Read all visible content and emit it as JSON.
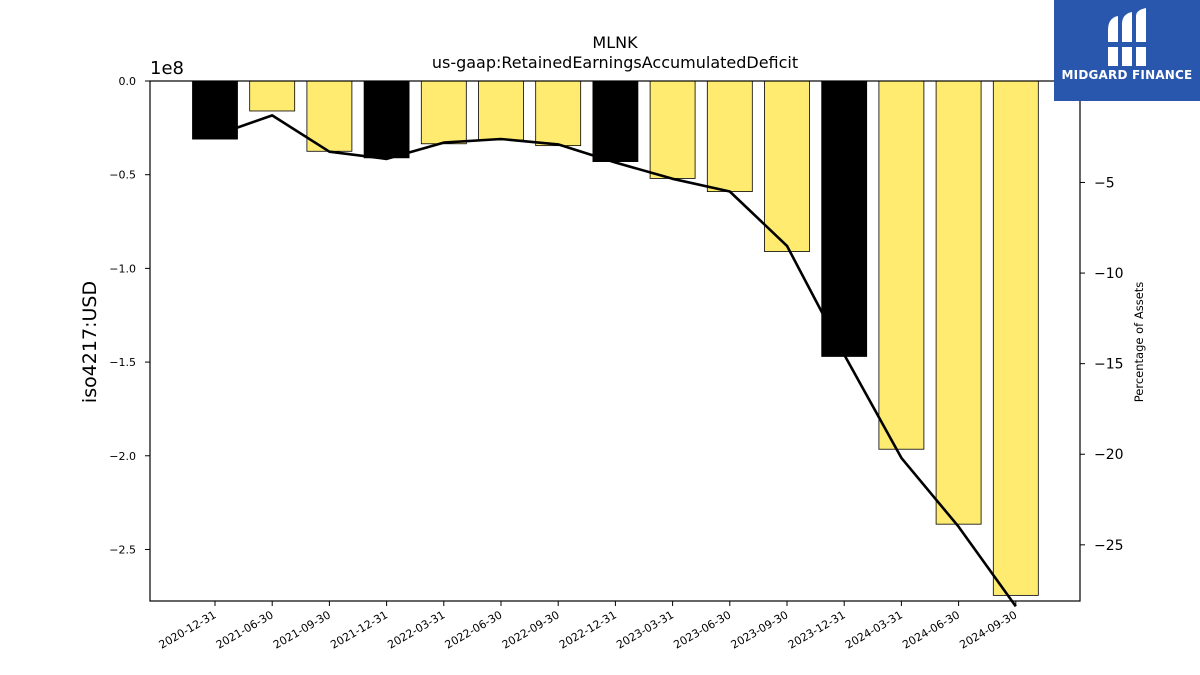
{
  "brand": {
    "name": "MIDGARD FINANCE",
    "bg_color": "#2a57ae",
    "icon": "midgard-logo-icon"
  },
  "colors": {
    "annual_bar": "#000000",
    "quarter_bar": "#ffeb70",
    "line": "#000000"
  },
  "chart_data": {
    "type": "bar",
    "title": "MLNK",
    "subtitle": "us-gaap:RetainedEarningsAccumulatedDeficit",
    "ylabel": "iso4217:USD",
    "y2label": "Percentage of Assets",
    "y_offset_label": "1e8",
    "categories": [
      "2020-12-31",
      "2021-06-30",
      "2021-09-30",
      "2021-12-31",
      "2022-03-31",
      "2022-06-30",
      "2022-09-30",
      "2022-12-31",
      "2023-03-31",
      "2023-06-30",
      "2023-09-30",
      "2023-12-31",
      "2024-03-31",
      "2024-06-30",
      "2024-09-30"
    ],
    "series": [
      {
        "kind": "bar",
        "axis": "left",
        "values": [
          -31000000,
          -16000000,
          -37500000,
          -41000000,
          -33500000,
          -31500000,
          -34500000,
          -43000000,
          -52000000,
          -59000000,
          -91000000,
          -147000000,
          -196500000,
          -236500000,
          -274500000
        ],
        "annual": [
          true,
          false,
          false,
          true,
          false,
          false,
          false,
          true,
          false,
          false,
          false,
          true,
          false,
          false,
          false
        ]
      },
      {
        "kind": "line",
        "axis": "right",
        "values": [
          -2.4,
          -1.3,
          -3.3,
          -3.7,
          -2.8,
          -2.6,
          -2.9,
          -3.9,
          -4.8,
          -5.5,
          -8.5,
          -14.5,
          -20.2,
          -24.0,
          -28.4
        ]
      }
    ],
    "ylim": [
      -277500000,
      0
    ],
    "y2lim": [
      -28.1,
      0.6
    ],
    "yticks": [
      0,
      -50000000,
      -100000000,
      -150000000,
      -200000000,
      -250000000
    ],
    "ytick_labels": [
      "0.0",
      "−0.5",
      "−1.0",
      "−1.5",
      "−2.0",
      "−2.5"
    ],
    "y2ticks": [
      -5,
      -10,
      -15,
      -20,
      -25
    ],
    "y2tick_labels": [
      "−5",
      "−10",
      "−15",
      "−20",
      "−25"
    ],
    "grid": false,
    "legend": "none"
  }
}
